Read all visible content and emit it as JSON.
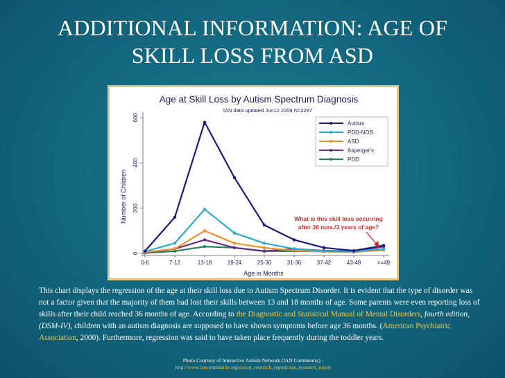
{
  "slide": {
    "title": "ADDITIONAL INFORMATION: AGE OF SKILL LOSS FROM ASD"
  },
  "chart_data": {
    "type": "line",
    "title": "Age at Skill Loss by Autism Spectrum Diagnosis",
    "subtitle": "IAN data updated Jun12 2008  N=2287",
    "xlabel": "Age in Months",
    "ylabel": "Number of Children",
    "ylim": [
      0,
      600
    ],
    "yticks": [
      "0",
      "200",
      "400",
      "600"
    ],
    "categories": [
      "0-6",
      "7-12",
      "13-18",
      "19-24",
      "25-30",
      "31-36",
      "37-42",
      "43-48",
      ">=49"
    ],
    "legend_position": "top-right",
    "grid": false,
    "series": [
      {
        "name": "Autism",
        "color": "#1a1a7a",
        "values": [
          10,
          160,
          580,
          335,
          125,
          60,
          25,
          12,
          35
        ]
      },
      {
        "name": "PDD-NOS",
        "color": "#2aa9cf",
        "values": [
          8,
          45,
          195,
          90,
          45,
          20,
          10,
          8,
          20
        ]
      },
      {
        "name": "ASD",
        "color": "#f0902a",
        "values": [
          5,
          20,
          100,
          45,
          25,
          12,
          8,
          6,
          15
        ]
      },
      {
        "name": "Asperger's",
        "color": "#6a2a82",
        "values": [
          3,
          20,
          60,
          25,
          10,
          20,
          12,
          10,
          30
        ]
      },
      {
        "name": "PDD",
        "color": "#1e8060",
        "values": [
          2,
          10,
          30,
          25,
          10,
          10,
          8,
          6,
          15
        ]
      }
    ],
    "annotation": {
      "text_line1": "What is this skill loss occurring",
      "text_line2": "after 36 mos./3 years of age?",
      "color": "#d42a2a"
    }
  },
  "body": {
    "p1": "This chart displays the regression of the age at their skill loss due to Autism Spectrum Disorder. It is evident that the type of disorder was not a factor given that the majority of them had lost their skills between 13 and 18 months of age. Some parents were even reporting loss of skills after their child reached 36 months of age. According to ",
    "link1": "the Diagnostic and Statistical Manual of Mental Disorders",
    "p2": ", fourth edition, (DSM-IV),",
    "p3": " children with an autism diagnosis are supposed to have shown symptoms before age 36 months. (",
    "link2": "American Psychiatric Association",
    "p4": ", 2000). Furthermore, regression was said to have taken place frequently during the toddler years."
  },
  "credit": {
    "line1": "Photo Courtesy of Interactive Autism Network (IAN Community) -",
    "url": "http://www.iancommunity.org/cs/ian_research_reports/ian_research_report"
  }
}
